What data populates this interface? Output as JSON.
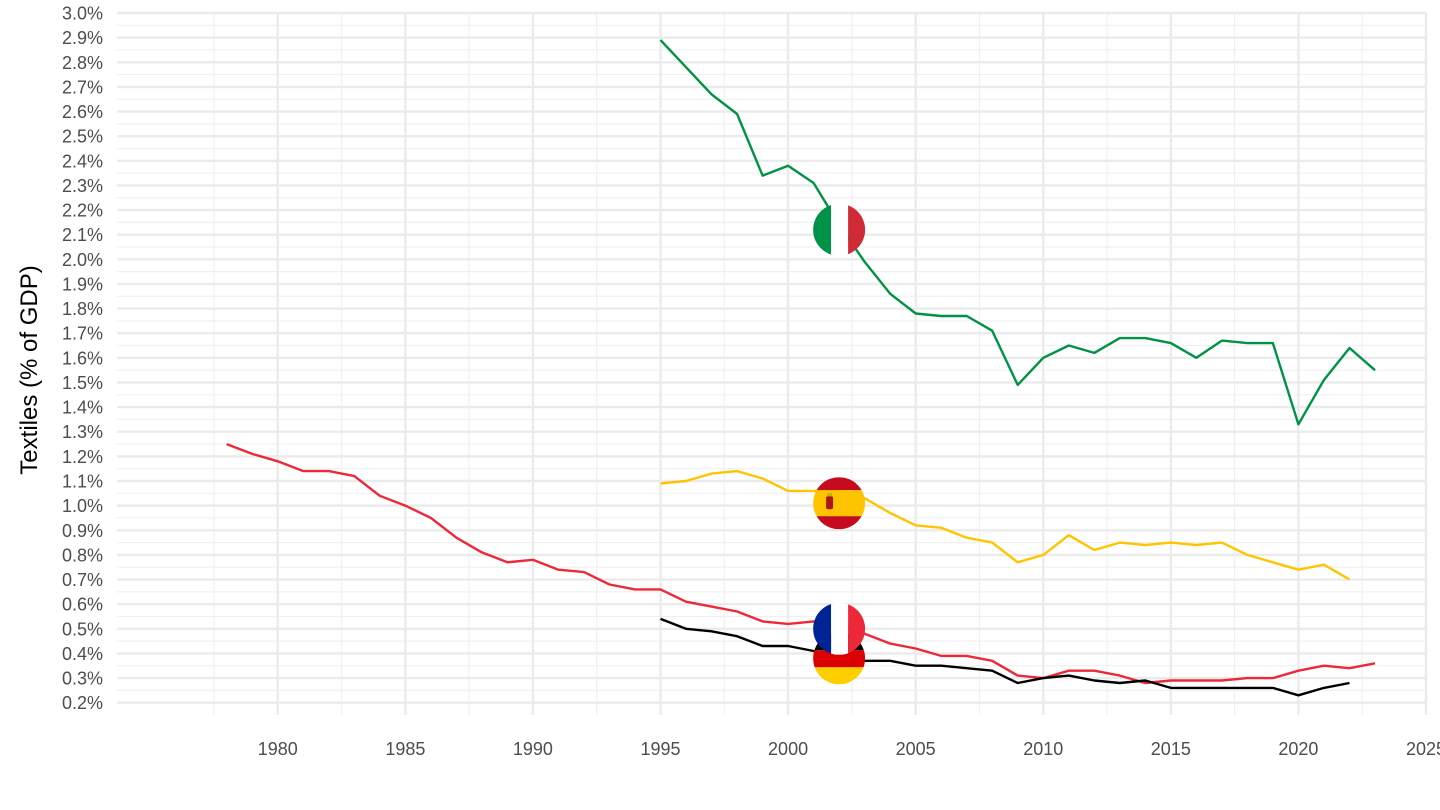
{
  "chart_data": {
    "type": "line",
    "title": "",
    "xlabel": "",
    "ylabel": "Textiles (% of GDP)",
    "xlim": [
      1973.7,
      2025
    ],
    "ylim": [
      0.0015,
      0.03
    ],
    "x_ticks": [
      1980,
      1985,
      1990,
      1995,
      2000,
      2005,
      2010,
      2015,
      2020,
      2025
    ],
    "x_tick_labels": [
      "1980",
      "1985",
      "1990",
      "1995",
      "2000",
      "2005",
      "2010",
      "2015",
      "2020",
      "2025"
    ],
    "y_ticks": [
      0.002,
      0.003,
      0.004,
      0.005,
      0.006,
      0.007,
      0.008,
      0.009,
      0.01,
      0.011,
      0.012,
      0.013,
      0.014,
      0.015,
      0.016,
      0.017,
      0.018,
      0.019,
      0.02,
      0.021,
      0.022,
      0.023,
      0.024,
      0.025,
      0.026,
      0.027,
      0.028,
      0.029,
      0.03
    ],
    "y_tick_labels": [
      "0.2%",
      "0.3%",
      "0.4%",
      "0.5%",
      "0.6%",
      "0.7%",
      "0.8%",
      "0.9%",
      "1.0%",
      "1.1%",
      "1.2%",
      "1.3%",
      "1.4%",
      "1.5%",
      "1.6%",
      "1.7%",
      "1.8%",
      "1.9%",
      "2.0%",
      "2.1%",
      "2.2%",
      "2.3%",
      "2.4%",
      "2.5%",
      "2.6%",
      "2.7%",
      "2.8%",
      "2.9%",
      "3.0%"
    ],
    "grid": true,
    "legend": "none",
    "series": [
      {
        "key": "italy",
        "color": "#009246",
        "flag": "italy-flag",
        "flag_x": 2002,
        "flag_y": 0.0212,
        "x": [
          1995,
          1996,
          1997,
          1998,
          1999,
          2000,
          2001,
          2002,
          2003,
          2004,
          2005,
          2006,
          2007,
          2008,
          2009,
          2010,
          2011,
          2012,
          2013,
          2014,
          2015,
          2016,
          2017,
          2018,
          2019,
          2020,
          2021,
          2022,
          2023
        ],
        "y": [
          0.0289,
          0.0278,
          0.0267,
          0.0259,
          0.0234,
          0.0238,
          0.0231,
          0.0214,
          0.0199,
          0.0186,
          0.0178,
          0.0177,
          0.0177,
          0.0171,
          0.0149,
          0.016,
          0.0165,
          0.0162,
          0.0168,
          0.0168,
          0.0166,
          0.016,
          0.0167,
          0.0166,
          0.0166,
          0.0133,
          0.0151,
          0.0164,
          0.0155
        ]
      },
      {
        "key": "spain",
        "color": "#FFC400",
        "flag": "spain-flag",
        "flag_x": 2002,
        "flag_y": 0.0101,
        "x": [
          1995,
          1996,
          1997,
          1998,
          1999,
          2000,
          2001,
          2002,
          2003,
          2004,
          2005,
          2006,
          2007,
          2008,
          2009,
          2010,
          2011,
          2012,
          2013,
          2014,
          2015,
          2016,
          2017,
          2018,
          2019,
          2020,
          2021,
          2022
        ],
        "y": [
          0.0109,
          0.011,
          0.0113,
          0.0114,
          0.0111,
          0.0106,
          0.0106,
          0.0106,
          0.0103,
          0.0097,
          0.0092,
          0.0091,
          0.0087,
          0.0085,
          0.0077,
          0.008,
          0.0088,
          0.0082,
          0.0085,
          0.0084,
          0.0085,
          0.0084,
          0.0085,
          0.008,
          0.0077,
          0.0074,
          0.0076,
          0.007
        ]
      },
      {
        "key": "france",
        "color": "#ED2939",
        "flag": "france-flag",
        "flag_x": 2002,
        "flag_y": 0.005,
        "x": [
          1978,
          1979,
          1980,
          1981,
          1982,
          1983,
          1984,
          1985,
          1986,
          1987,
          1988,
          1989,
          1990,
          1991,
          1992,
          1993,
          1994,
          1995,
          1996,
          1997,
          1998,
          1999,
          2000,
          2001,
          2002,
          2003,
          2004,
          2005,
          2006,
          2007,
          2008,
          2009,
          2010,
          2011,
          2012,
          2013,
          2014,
          2015,
          2016,
          2017,
          2018,
          2019,
          2020,
          2021,
          2022,
          2023
        ],
        "y": [
          0.0125,
          0.0121,
          0.0118,
          0.0114,
          0.0114,
          0.0112,
          0.0104,
          0.01,
          0.0095,
          0.0087,
          0.0081,
          0.0077,
          0.0078,
          0.0074,
          0.0073,
          0.0068,
          0.0066,
          0.0066,
          0.0061,
          0.0059,
          0.0057,
          0.0053,
          0.0052,
          0.0053,
          0.0051,
          0.0048,
          0.0044,
          0.0042,
          0.0039,
          0.0039,
          0.0037,
          0.0031,
          0.003,
          0.0033,
          0.0033,
          0.0031,
          0.0028,
          0.0029,
          0.0029,
          0.0029,
          0.003,
          0.003,
          0.0033,
          0.0035,
          0.0034,
          0.0036
        ]
      },
      {
        "key": "germany",
        "color": "#000000",
        "flag": "germany-flag",
        "flag_x": 2002,
        "flag_y": 0.0038,
        "x": [
          1995,
          1996,
          1997,
          1998,
          1999,
          2000,
          2001,
          2002,
          2003,
          2004,
          2005,
          2006,
          2007,
          2008,
          2009,
          2010,
          2011,
          2012,
          2013,
          2014,
          2015,
          2016,
          2017,
          2018,
          2019,
          2020,
          2021,
          2022
        ],
        "y": [
          0.0054,
          0.005,
          0.0049,
          0.0047,
          0.0043,
          0.0043,
          0.0041,
          0.0039,
          0.0037,
          0.0037,
          0.0035,
          0.0035,
          0.0034,
          0.0033,
          0.0028,
          0.003,
          0.0031,
          0.0029,
          0.0028,
          0.0029,
          0.0026,
          0.0026,
          0.0026,
          0.0026,
          0.0026,
          0.0023,
          0.0026,
          0.0028
        ]
      }
    ]
  }
}
